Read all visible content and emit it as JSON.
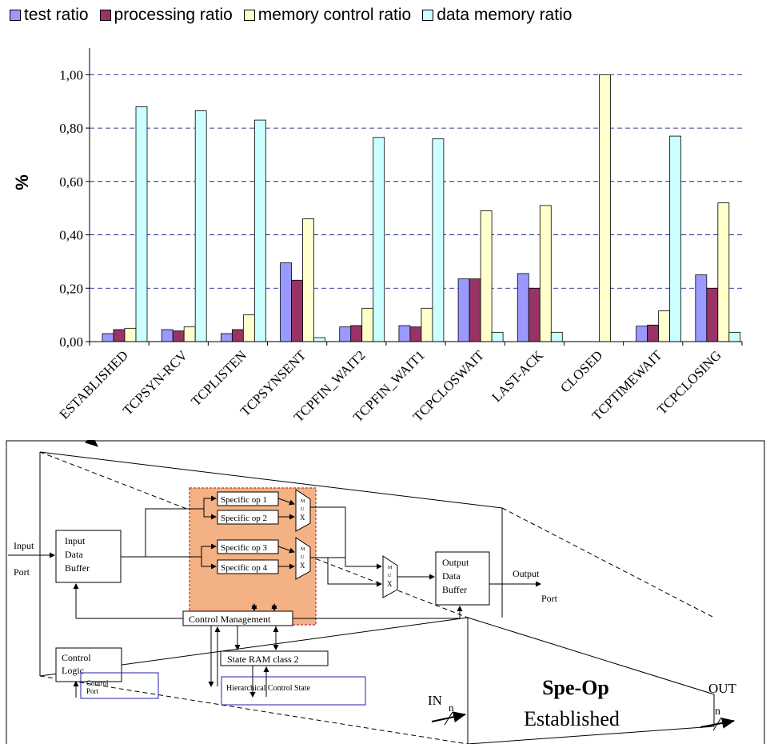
{
  "chart_data": {
    "type": "bar",
    "ylabel": "%",
    "xlabel": "",
    "ylim": [
      0,
      1.1
    ],
    "yticks": [
      "0,00",
      "0,20",
      "0,40",
      "0,60",
      "0,80",
      "1,00"
    ],
    "grid": true,
    "legend_position": "top",
    "categories": [
      "ESTABLISHED",
      "TCPSYN-RCV",
      "TCPLISTEN",
      "TCPSYNSENT",
      "TCPFIN_WAIT2",
      "TCPFIN_WAIT1",
      "TCPCLOSWAIT",
      "LAST-ACK",
      "CLOSED",
      "TCPTIMEWAIT",
      "TCPCLOSING"
    ],
    "series": [
      {
        "name": "test ratio",
        "color": "#9999ff",
        "values": [
          0.03,
          0.045,
          0.03,
          0.295,
          0.055,
          0.06,
          0.235,
          0.255,
          0.0,
          0.058,
          0.25
        ]
      },
      {
        "name": "processing ratio",
        "color": "#993366",
        "values": [
          0.045,
          0.04,
          0.045,
          0.23,
          0.06,
          0.055,
          0.235,
          0.2,
          0.0,
          0.062,
          0.2
        ]
      },
      {
        "name": "memory control ratio",
        "color": "#ffffcc",
        "values": [
          0.05,
          0.055,
          0.1,
          0.46,
          0.125,
          0.125,
          0.49,
          0.51,
          1.0,
          0.115,
          0.52
        ]
      },
      {
        "name": "data memory ratio",
        "color": "#ccffff",
        "values": [
          0.88,
          0.865,
          0.83,
          0.015,
          0.765,
          0.76,
          0.035,
          0.035,
          0.0,
          0.77,
          0.035
        ]
      }
    ]
  },
  "diagram": {
    "input_port": [
      "Input",
      "Port"
    ],
    "input_buffer": [
      "Input",
      "Data",
      "Buffer"
    ],
    "ops": [
      "Specific op 1",
      "Specific op 2",
      "Specific op 3",
      "Specific op 4"
    ],
    "mux": [
      "M",
      "U",
      "X"
    ],
    "output_buffer": [
      "Output",
      "Data",
      "Buffer"
    ],
    "output_port": [
      "Output",
      "Port"
    ],
    "control_management": "Control Management",
    "state_ram": "State RAM class 2",
    "control_logic": [
      "Control",
      "Logic"
    ],
    "control_port": [
      "Control",
      "Port"
    ],
    "hierarchical": "Hierarchical  Control State",
    "in_label": "IN",
    "out_label": "OUT",
    "sub_n": "n",
    "speop_title": "Spe-Op",
    "speop_sub": "Established"
  }
}
